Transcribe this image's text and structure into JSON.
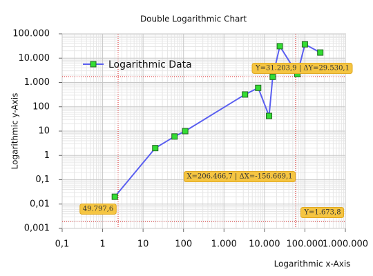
{
  "chart_data": {
    "type": "line",
    "title": "Double Logarithmic Chart",
    "x_label": "Logarithmic x-Axis",
    "y_label": "Logarithmic y-Axis",
    "x_log": true,
    "y_log": true,
    "grid": true,
    "legend": "upper left",
    "xlim": [
      0.1,
      1000000
    ],
    "ylim": [
      0.001,
      100000
    ],
    "xticks": [
      {
        "value": 0.1,
        "label": "0,1"
      },
      1,
      10,
      100,
      {
        "value": 1000,
        "label": "1.000"
      },
      {
        "value": 10000,
        "label": "10.000"
      },
      {
        "value": 100000,
        "label": "100.000"
      },
      {
        "value": 1000000,
        "label": "1.000.000"
      }
    ],
    "yticks": [
      {
        "value": 0.001,
        "label": "0,001"
      },
      {
        "value": 0.01,
        "label": "0,01"
      },
      {
        "value": 0.1,
        "label": "0,1"
      },
      1,
      10,
      100,
      {
        "value": 1000,
        "label": "1.000"
      },
      {
        "value": 10000,
        "label": "10.000"
      },
      {
        "value": 100000,
        "label": "100.000"
      }
    ],
    "x": [
      2,
      20,
      60,
      110,
      3300,
      7000,
      13000,
      16000,
      24000,
      65000,
      100000,
      240000
    ],
    "series": [
      {
        "name": "Logarithmic Data",
        "color": "#5a5ff0",
        "marker_color": "#33dd33",
        "values": [
          0.02,
          2,
          6,
          10,
          320,
          600,
          42,
          1700,
          31000,
          2200,
          37000,
          17000
        ]
      }
    ],
    "annotations": [
      "49.797,6",
      "Y=31.203,9 | ΔY=29.530,1",
      "X=206.466,7 | ΔX=-156.669,1",
      "Y=1.673,8"
    ]
  }
}
